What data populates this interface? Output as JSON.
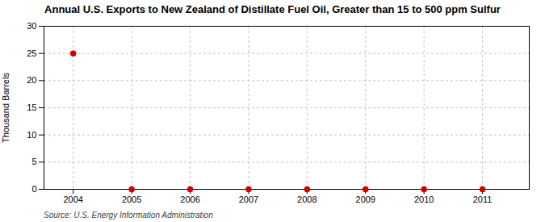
{
  "chart_data": {
    "type": "scatter",
    "title": "Annual U.S. Exports to New Zealand of Distillate Fuel Oil, Greater than 15 to 500 ppm Sulfur",
    "ylabel": "Thousand Barrels",
    "source": "Source: U.S. Energy Information Administration",
    "x": [
      2004,
      2005,
      2006,
      2007,
      2008,
      2009,
      2010,
      2011
    ],
    "values": [
      25,
      0,
      0,
      0,
      0,
      0,
      0,
      0
    ],
    "xlim": [
      2003.5,
      2011.8
    ],
    "xticks": [
      2004,
      2005,
      2006,
      2007,
      2008,
      2009,
      2010,
      2011
    ],
    "ylim": [
      0,
      30
    ],
    "yticks": [
      0,
      5,
      10,
      15,
      20,
      25,
      30
    ],
    "color": "#cc0000",
    "marker": "circle",
    "grid": true
  }
}
